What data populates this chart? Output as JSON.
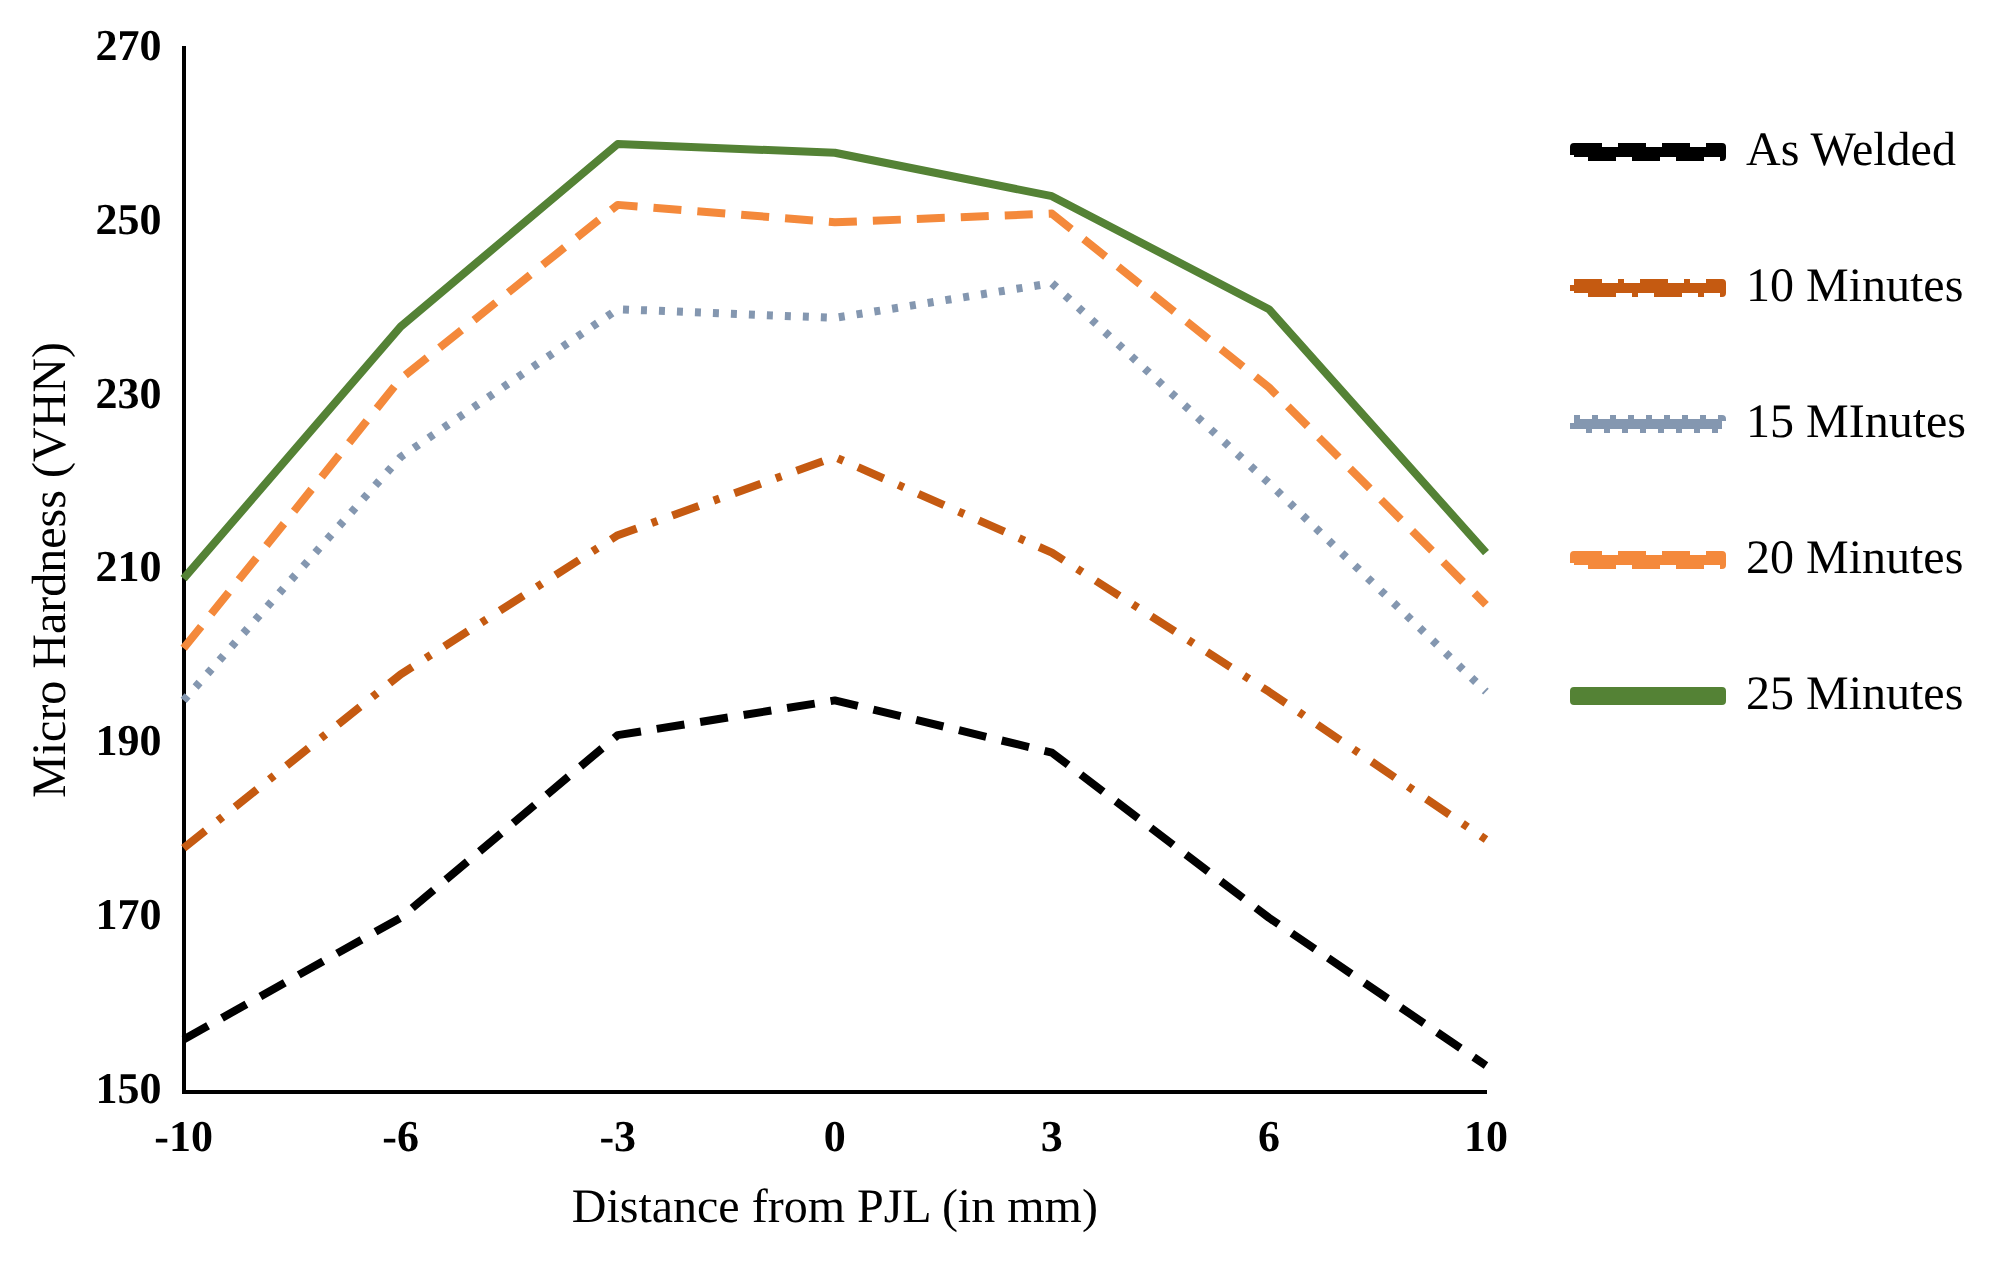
{
  "chart_data": {
    "type": "line",
    "xlabel": "Distance from PJL (in mm)",
    "ylabel": "Micro Hardness (VHN)",
    "categories": [
      "-10",
      "-6",
      "-3",
      "0",
      "3",
      "6",
      "10"
    ],
    "ylim": [
      150,
      270
    ],
    "yticks": [
      150,
      170,
      190,
      210,
      230,
      250,
      270
    ],
    "grid": false,
    "legend": "right",
    "marker": "none",
    "series": [
      {
        "name": "As Welded",
        "color": "#000000",
        "line_style": "dashed",
        "values": [
          156,
          170,
          191,
          195,
          189,
          170,
          153
        ]
      },
      {
        "name": "10 Minutes",
        "color": "#c55a11",
        "line_style": "dashdot",
        "values": [
          178,
          198,
          214,
          223,
          212,
          196,
          179
        ]
      },
      {
        "name": "15 MInutes",
        "color": "#8497b0",
        "line_style": "dotted",
        "values": [
          195,
          223,
          240,
          239,
          243,
          220,
          196
        ]
      },
      {
        "name": "20 Minutes",
        "color": "#f4893b",
        "line_style": "dashed",
        "values": [
          201,
          232,
          252,
          250,
          251,
          231,
          206
        ]
      },
      {
        "name": "25 Minutes",
        "color": "#548235",
        "line_style": "solid",
        "values": [
          209,
          238,
          259,
          258,
          253,
          240,
          212
        ]
      }
    ]
  }
}
